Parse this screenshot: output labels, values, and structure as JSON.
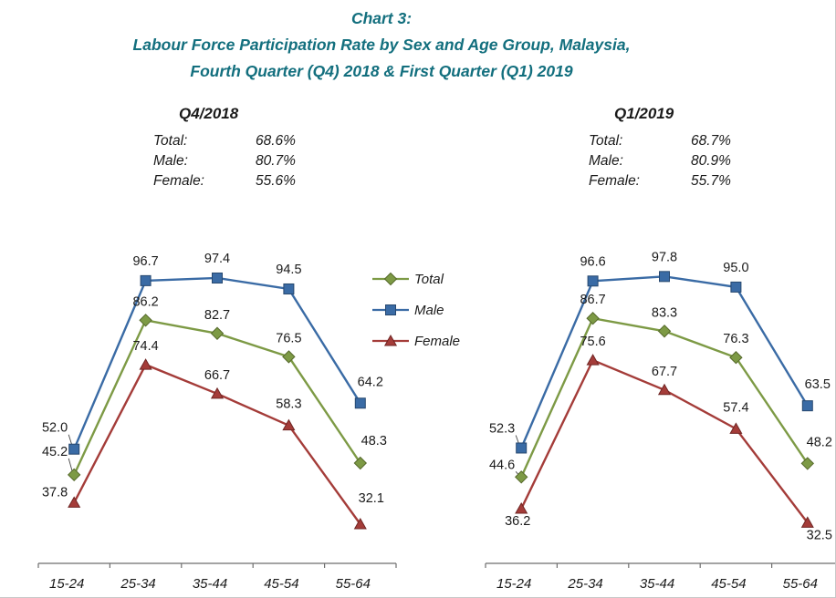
{
  "page": {
    "title_line1": "Chart 3:",
    "title_line2": "Labour Force Participation Rate by Sex and Age Group, Malaysia,",
    "title_line3": "Fourth Quarter (Q4) 2018 & First Quarter (Q1) 2019"
  },
  "colors": {
    "title": "#136F7E",
    "total": "#7D9A45",
    "total_dark": "#55682B",
    "male": "#3A6BA5",
    "male_dark": "#27486F",
    "female": "#A43C39",
    "female_dark": "#6F2624",
    "axis": "#6E6E6E",
    "text": "#1A1A1A"
  },
  "legend": {
    "items": [
      {
        "label": "Total",
        "key": "total",
        "marker": "diamond"
      },
      {
        "label": "Male",
        "key": "male",
        "marker": "square"
      },
      {
        "label": "Female",
        "key": "female",
        "marker": "triangle"
      }
    ]
  },
  "chart_data": [
    {
      "type": "line",
      "title": "Q4/2018",
      "summary": [
        {
          "label": "Total:",
          "value": "68.6%"
        },
        {
          "label": "Male:",
          "value": "80.7%"
        },
        {
          "label": "Female:",
          "value": "55.6%"
        }
      ],
      "categories": [
        "15-24",
        "25-34",
        "35-44",
        "45-54",
        "55-64"
      ],
      "ylim": [
        20,
        100
      ],
      "grid": false,
      "legend_position": "right-of-chart",
      "series": [
        {
          "name": "Total",
          "key": "total",
          "marker": "diamond",
          "values": [
            45.2,
            86.2,
            82.7,
            76.5,
            48.3
          ],
          "label_pos": [
            [
              -7,
              -21,
              "end",
              1
            ],
            [
              0,
              -16,
              "middle"
            ],
            [
              0,
              -16,
              "middle"
            ],
            [
              0,
              -16,
              "middle"
            ],
            [
              15,
              -20,
              "middle"
            ]
          ]
        },
        {
          "name": "Male",
          "key": "male",
          "marker": "square",
          "values": [
            52.0,
            96.7,
            97.4,
            94.5,
            64.2
          ],
          "label_pos": [
            [
              -7,
              -19,
              "end",
              1
            ],
            [
              0,
              -17,
              "middle"
            ],
            [
              0,
              -17,
              "middle"
            ],
            [
              0,
              -17,
              "middle"
            ],
            [
              11,
              -19,
              "middle"
            ]
          ]
        },
        {
          "name": "Female",
          "key": "female",
          "marker": "triangle",
          "values": [
            37.8,
            74.4,
            66.7,
            58.3,
            32.1
          ],
          "label_pos": [
            [
              -7,
              -7,
              "end"
            ],
            [
              0,
              -16,
              "middle"
            ],
            [
              0,
              -16,
              "middle"
            ],
            [
              0,
              -19,
              "middle"
            ],
            [
              12,
              -24,
              "middle"
            ]
          ]
        }
      ]
    },
    {
      "type": "line",
      "title": "Q1/2019",
      "summary": [
        {
          "label": "Total:",
          "value": "68.7%"
        },
        {
          "label": "Male:",
          "value": "80.9%"
        },
        {
          "label": "Female:",
          "value": "55.7%"
        }
      ],
      "categories": [
        "15-24",
        "25-34",
        "35-44",
        "45-54",
        "55-64"
      ],
      "ylim": [
        20,
        100
      ],
      "grid": false,
      "legend_position": "left-of-chart",
      "series": [
        {
          "name": "Total",
          "key": "total",
          "marker": "diamond",
          "values": [
            44.6,
            86.7,
            83.3,
            76.3,
            48.2
          ],
          "label_pos": [
            [
              -7,
              -9,
              "end",
              1
            ],
            [
              0,
              -16,
              "middle"
            ],
            [
              0,
              -16,
              "middle"
            ],
            [
              0,
              -16,
              "middle"
            ],
            [
              13,
              -19,
              "middle"
            ]
          ]
        },
        {
          "name": "Male",
          "key": "male",
          "marker": "square",
          "values": [
            52.3,
            96.6,
            97.8,
            95.0,
            63.5
          ],
          "label_pos": [
            [
              -7,
              -17,
              "end",
              1
            ],
            [
              0,
              -17,
              "middle"
            ],
            [
              0,
              -17,
              "middle"
            ],
            [
              0,
              -17,
              "middle"
            ],
            [
              11,
              -19,
              "middle"
            ]
          ]
        },
        {
          "name": "Female",
          "key": "female",
          "marker": "triangle",
          "values": [
            36.2,
            75.6,
            67.7,
            57.4,
            32.5
          ],
          "label_pos": [
            [
              -4,
              18,
              "middle"
            ],
            [
              0,
              -16,
              "middle"
            ],
            [
              0,
              -16,
              "middle"
            ],
            [
              0,
              -19,
              "middle"
            ],
            [
              13,
              18,
              "middle"
            ]
          ]
        }
      ]
    }
  ]
}
